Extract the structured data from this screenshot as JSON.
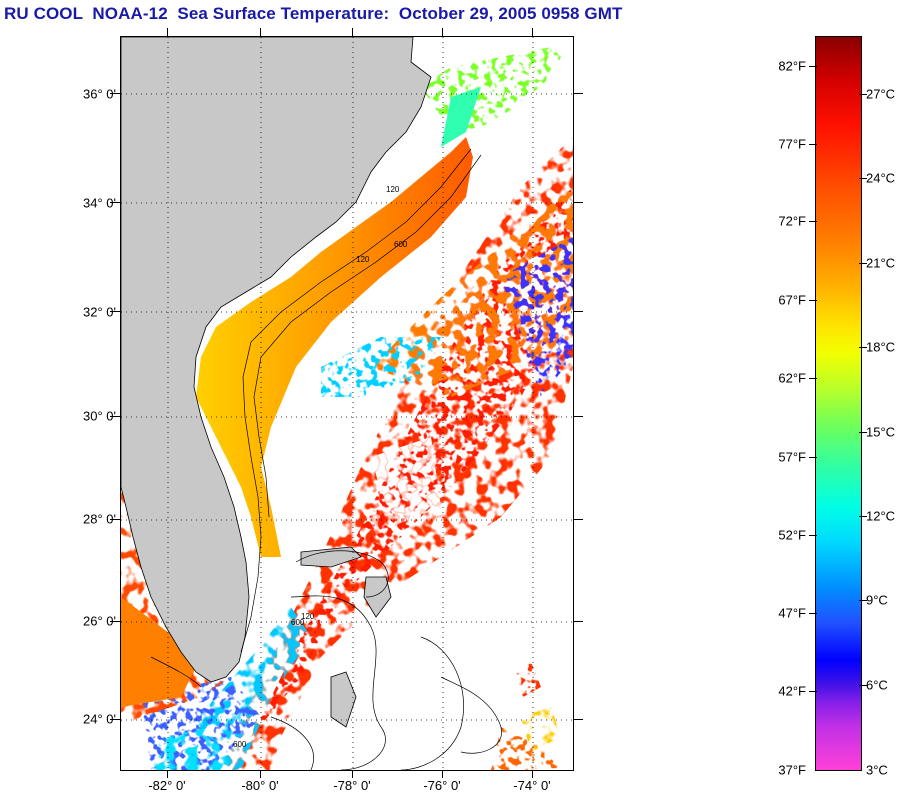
{
  "title": "RU COOL  NOAA-12  Sea Surface Temperature:  October 29, 2005 0958 GMT",
  "map": {
    "lat_labels": [
      "36° 0'",
      "34° 0'",
      "32° 0'",
      "30° 0'",
      "28° 0'",
      "26° 0'",
      "24° 0'"
    ],
    "lon_labels": [
      "-82° 0'",
      "-80° 0'",
      "-78° 0'",
      "-76° 0'",
      "-74° 0'"
    ],
    "contour_labels": [
      "120",
      "600",
      "120",
      "600",
      "120",
      "600"
    ],
    "colors": {
      "land": "#c8c8c8",
      "no_data": "#ffffff",
      "warm_gulf_stream": "#ff2a00",
      "shelf_orange": "#ff8c00",
      "nearshore_yellow": "#ffcc00",
      "cold_cyan": "#00e0ff"
    }
  },
  "colorbar": {
    "fahrenheit_labels": [
      "82°F",
      "77°F",
      "72°F",
      "67°F",
      "62°F",
      "57°F",
      "52°F",
      "47°F",
      "42°F",
      "37°F"
    ],
    "celsius_labels": [
      "27°C",
      "24°C",
      "21°C",
      "18°C",
      "15°C",
      "12°C",
      "9°C",
      "6°C",
      "3°C"
    ]
  }
}
